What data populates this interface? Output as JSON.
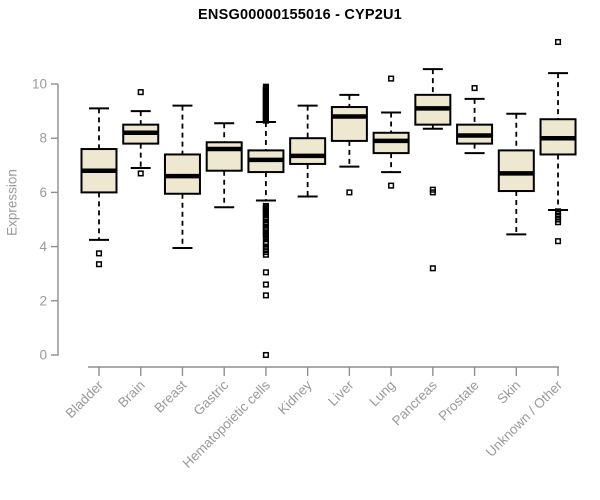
{
  "chart_data": {
    "type": "boxplot",
    "title": "ENSG00000155016 - CYP2U1",
    "ylabel": "Expression",
    "xlabel": "",
    "ylim": [
      0,
      10
    ],
    "yticks": [
      0,
      2,
      4,
      6,
      8,
      10
    ],
    "grid": false,
    "legend_position": "none",
    "categories": [
      "Bladder",
      "Brain",
      "Breast",
      "Gastric",
      "Hematopoietic cells",
      "Kidney",
      "Liver",
      "Lung",
      "Pancreas",
      "Prostate",
      "Skin",
      "Unknown / Other"
    ],
    "boxes": [
      {
        "label": "Bladder",
        "whisker_low": 4.25,
        "q1": 6.0,
        "median": 6.8,
        "q3": 7.6,
        "whisker_high": 9.1,
        "outliers": [
          3.75,
          3.35
        ]
      },
      {
        "label": "Brain",
        "whisker_low": 6.9,
        "q1": 7.8,
        "median": 8.2,
        "q3": 8.5,
        "whisker_high": 9.0,
        "outliers": [
          9.7,
          6.7
        ]
      },
      {
        "label": "Breast",
        "whisker_low": 3.95,
        "q1": 5.95,
        "median": 6.6,
        "q3": 7.4,
        "whisker_high": 9.2,
        "outliers": []
      },
      {
        "label": "Gastric",
        "whisker_low": 5.45,
        "q1": 6.8,
        "median": 7.6,
        "q3": 7.85,
        "whisker_high": 8.55,
        "outliers": []
      },
      {
        "label": "Hematopoietic cells",
        "whisker_low": 5.7,
        "q1": 6.75,
        "median": 7.2,
        "q3": 7.55,
        "whisker_high": 8.6,
        "outliers": [
          9.9,
          9.85,
          9.8,
          9.75,
          9.7,
          9.65,
          9.6,
          9.55,
          9.5,
          9.45,
          9.4,
          9.35,
          9.3,
          9.25,
          9.2,
          9.15,
          9.1,
          9.05,
          9.0,
          8.95,
          8.9,
          8.85,
          8.8,
          8.75,
          8.7,
          8.65,
          5.5,
          5.45,
          5.4,
          5.35,
          5.3,
          5.25,
          5.2,
          5.1,
          5.05,
          5.0,
          4.9,
          4.85,
          4.8,
          4.7,
          4.65,
          4.6,
          4.5,
          4.45,
          4.4,
          4.35,
          4.15,
          4.1,
          4.0,
          3.9,
          3.8,
          3.7,
          3.05,
          2.6,
          2.2,
          0.0
        ]
      },
      {
        "label": "Kidney",
        "whisker_low": 5.85,
        "q1": 7.05,
        "median": 7.35,
        "q3": 8.0,
        "whisker_high": 9.2,
        "outliers": []
      },
      {
        "label": "Liver",
        "whisker_low": 6.95,
        "q1": 7.9,
        "median": 8.8,
        "q3": 9.15,
        "whisker_high": 9.6,
        "outliers": [
          6.0
        ]
      },
      {
        "label": "Lung",
        "whisker_low": 6.75,
        "q1": 7.45,
        "median": 7.9,
        "q3": 8.2,
        "whisker_high": 8.95,
        "outliers": [
          10.2,
          6.25
        ]
      },
      {
        "label": "Pancreas",
        "whisker_low": 8.35,
        "q1": 8.5,
        "median": 9.1,
        "q3": 9.6,
        "whisker_high": 10.55,
        "outliers": [
          6.1,
          6.0,
          3.2
        ]
      },
      {
        "label": "Prostate",
        "whisker_low": 7.45,
        "q1": 7.8,
        "median": 8.1,
        "q3": 8.5,
        "whisker_high": 9.45,
        "outliers": [
          9.85
        ]
      },
      {
        "label": "Skin",
        "whisker_low": 4.45,
        "q1": 6.05,
        "median": 6.7,
        "q3": 7.55,
        "whisker_high": 8.9,
        "outliers": []
      },
      {
        "label": "Unknown / Other",
        "whisker_low": 5.35,
        "q1": 7.4,
        "median": 8.0,
        "q3": 8.7,
        "whisker_high": 10.4,
        "outliers": [
          11.55,
          5.3,
          5.2,
          5.1,
          5.0,
          4.9,
          4.2
        ]
      }
    ],
    "colors": {
      "box_fill": "#EDE8CF",
      "box_border": "#000000",
      "median": "#000000",
      "whisker": "#000000",
      "outlier": "#000000",
      "axis": "#8f8f8f",
      "tick_text": "#9a9a9a",
      "title_text": "#000000"
    }
  }
}
